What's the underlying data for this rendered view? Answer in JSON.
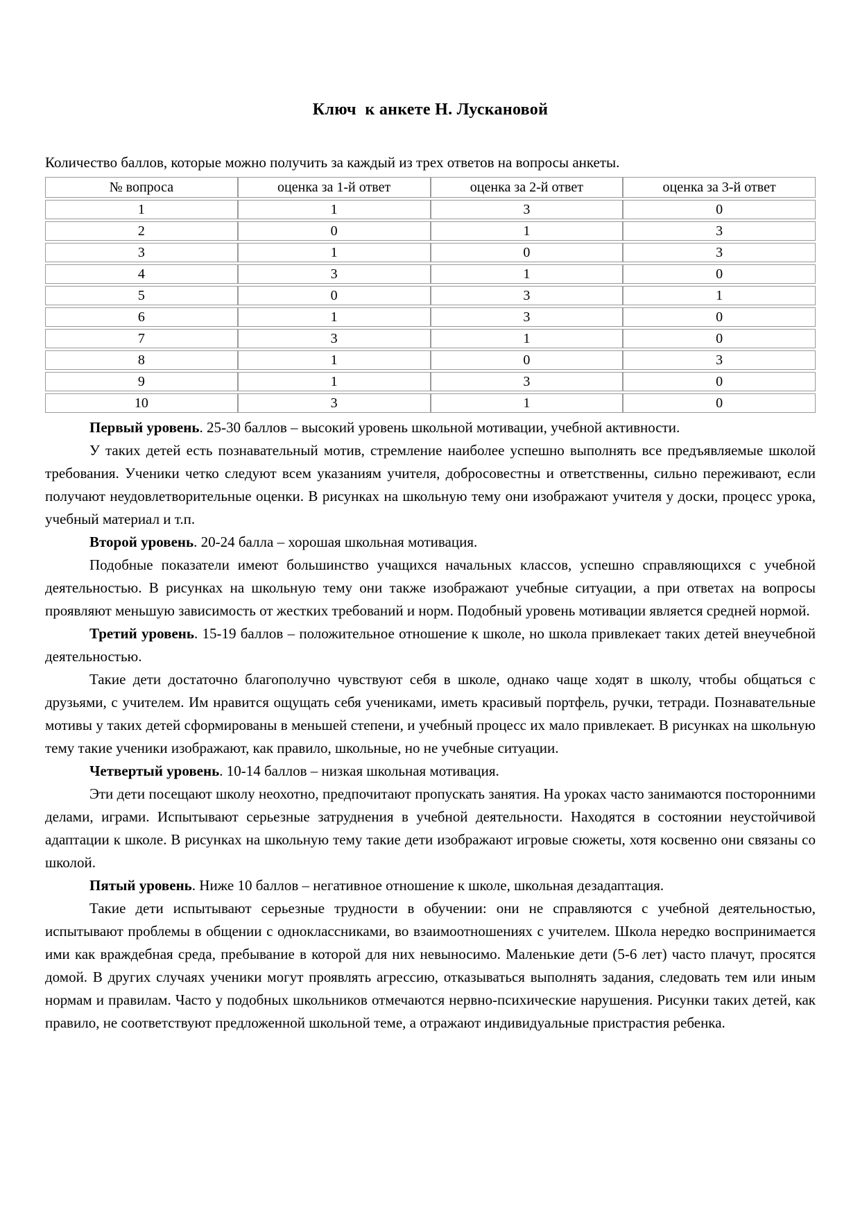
{
  "doc": {
    "title": "Ключ  к анкете Н. Лускановой",
    "intro": "Количество баллов, которые можно получить за каждый из трех ответов на вопросы анкеты."
  },
  "table": {
    "headers": [
      "№ вопроса",
      "оценка за 1-й ответ",
      "оценка за 2-й ответ",
      "оценка за 3-й ответ"
    ],
    "rows": [
      [
        "1",
        "1",
        "3",
        "0"
      ],
      [
        "2",
        "0",
        "1",
        "3"
      ],
      [
        "3",
        "1",
        "0",
        "3"
      ],
      [
        "4",
        "3",
        "1",
        "0"
      ],
      [
        "5",
        "0",
        "3",
        "1"
      ],
      [
        "6",
        "1",
        "3",
        "0"
      ],
      [
        "7",
        "3",
        "1",
        "0"
      ],
      [
        "8",
        "1",
        "0",
        "3"
      ],
      [
        "9",
        "1",
        "3",
        "0"
      ],
      [
        "10",
        "3",
        "1",
        "0"
      ]
    ]
  },
  "levels": [
    {
      "heading": "Первый уровень",
      "summary": ". 25-30 баллов – высокий уровень школьной мотивации, учебной активности.",
      "description": "У таких детей есть познавательный мотив, стремление наиболее успешно выполнять все предъявляемые школой требования. Ученики четко следуют всем указаниям учителя, добросовестны и ответственны, сильно переживают, если получают неудовлетворительные оценки. В рисунках на школьную тему они изображают учителя у доски, процесс урока, учебный материал и т.п."
    },
    {
      "heading": "Второй уровень",
      "summary": ". 20-24 балла – хорошая школьная мотивация.",
      "description": "Подобные показатели имеют большинство учащихся начальных классов, успешно справляющихся с учебной деятельностью. В рисунках на школьную тему они также изображают учебные ситуации, а при ответах на вопросы проявляют меньшую зависимость от жестких требований и норм. Подобный уровень мотивации является средней нормой."
    },
    {
      "heading": "Третий уровень",
      "summary": ". 15-19 баллов – положительное отношение к школе, но школа привлекает таких детей внеучебной деятельностью.",
      "description": "Такие дети достаточно благополучно чувствуют себя в школе, однако чаще ходят в школу, чтобы общаться с друзьями, с учителем. Им нравится ощущать себя учениками, иметь красивый портфель, ручки, тетради. Познавательные мотивы у таких детей сформированы в меньшей степени, и учебный процесс их мало привлекает. В рисунках на школьную тему такие ученики изображают, как правило, школьные, но не учебные ситуации."
    },
    {
      "heading": "Четвертый уровень",
      "summary": ". 10-14 баллов – низкая школьная мотивация.",
      "description": "Эти дети посещают школу неохотно, предпочитают пропускать занятия. На уроках часто занимаются посторонними делами, играми. Испытывают серьезные затруднения в учебной деятельности. Находятся в состоянии неустойчивой адаптации к школе. В рисунках на школьную тему такие дети изображают игровые сюжеты, хотя косвенно они связаны со школой."
    },
    {
      "heading": "Пятый уровень",
      "summary": ". Ниже 10 баллов – негативное отношение к школе, школьная дезадаптация.",
      "description": "Такие дети испытывают серьезные трудности в обучении: они не справляются с учебной деятельностью, испытывают проблемы в общении с одноклассниками, во взаимоотношениях с учителем. Школа нередко воспринимается ими как враждебная среда, пребывание в которой для них невыносимо. Маленькие дети (5-6 лет) часто плачут, просятся домой. В других случаях ученики могут проявлять агрессию, отказываться выполнять задания, следовать тем или иным нормам и правилам. Часто у подобных школьников отмечаются нервно-психические нарушения. Рисунки таких детей, как правило, не соответствуют предложенной школьной теме, а отражают индивидуальные пристрастия ребенка."
    }
  ],
  "colors": {
    "table_border": "#999999",
    "text": "#000000",
    "background": "#ffffff"
  }
}
